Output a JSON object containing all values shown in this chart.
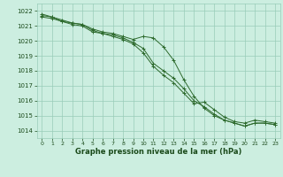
{
  "x": [
    0,
    1,
    2,
    3,
    4,
    5,
    6,
    7,
    8,
    9,
    10,
    11,
    12,
    13,
    14,
    15,
    16,
    17,
    18,
    19,
    20,
    21,
    22,
    23
  ],
  "line1": [
    1021.6,
    1021.5,
    1021.3,
    1021.2,
    1021.1,
    1020.7,
    1020.5,
    1020.4,
    1020.2,
    1019.9,
    1019.5,
    1018.5,
    1018.0,
    1017.5,
    1016.8,
    1016.0,
    1015.6,
    1015.1,
    1014.7,
    1014.5,
    1014.3,
    1014.5,
    1014.5,
    1014.4
  ],
  "line2": [
    1021.7,
    1021.6,
    1021.4,
    1021.2,
    1021.1,
    1020.8,
    1020.6,
    1020.5,
    1020.3,
    1020.1,
    1020.3,
    1020.2,
    1019.6,
    1018.7,
    1017.4,
    1016.3,
    1015.5,
    1015.0,
    1014.7,
    1014.5,
    1014.3,
    1014.5,
    1014.5,
    1014.4
  ],
  "line3": [
    1021.8,
    1021.6,
    1021.3,
    1021.1,
    1021.0,
    1020.6,
    1020.5,
    1020.3,
    1020.1,
    1019.8,
    1019.2,
    1018.3,
    1017.7,
    1017.2,
    1016.5,
    1015.8,
    1015.9,
    1015.4,
    1014.9,
    1014.6,
    1014.5,
    1014.7,
    1014.6,
    1014.5
  ],
  "line_color": "#2d6a2d",
  "bg_color": "#cceee0",
  "grid_color": "#99ccb8",
  "ylim": [
    1013.5,
    1022.5
  ],
  "yticks": [
    1014,
    1015,
    1016,
    1017,
    1018,
    1019,
    1020,
    1021,
    1022
  ],
  "xlabel": "Graphe pression niveau de la mer (hPa)",
  "label_color": "#1a4a1a",
  "marker": "+",
  "markersize": 3,
  "linewidth": 0.7
}
